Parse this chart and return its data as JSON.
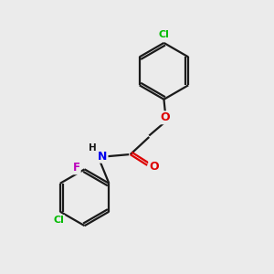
{
  "background_color": "#ebebeb",
  "bond_color": "#1a1a1a",
  "atom_colors": {
    "Cl": "#00bb00",
    "O": "#dd0000",
    "N": "#0000ee",
    "F": "#bb00bb",
    "C": "#1a1a1a",
    "H": "#1a1a1a"
  },
  "figsize": [
    3.0,
    3.0
  ],
  "dpi": 100,
  "lw": 1.6
}
